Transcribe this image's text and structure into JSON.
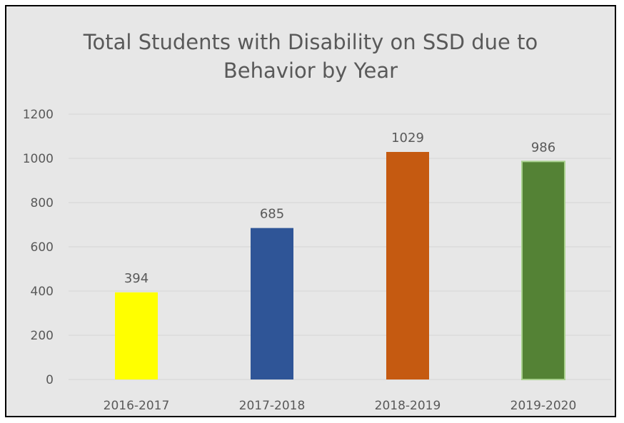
{
  "chart_data": {
    "type": "bar",
    "title_lines": [
      "Total Students with Disability on SSD due to",
      "Behavior by Year"
    ],
    "categories": [
      "2016-2017",
      "2017-2018",
      "2018-2019",
      "2019-2020"
    ],
    "values": [
      394,
      685,
      1029,
      986
    ],
    "bar_colors": [
      "#ffff00",
      "#2f5597",
      "#c55a11",
      "#548235"
    ],
    "yticks": [
      0,
      200,
      400,
      600,
      800,
      1000,
      1200
    ],
    "ylim": [
      0,
      1200
    ],
    "grid": true,
    "data_labels": true,
    "legend": "none"
  },
  "colors": {
    "background": "#e7e7e7",
    "border": "#000000",
    "text": "#595959",
    "gridline": "#d6d6d6"
  }
}
